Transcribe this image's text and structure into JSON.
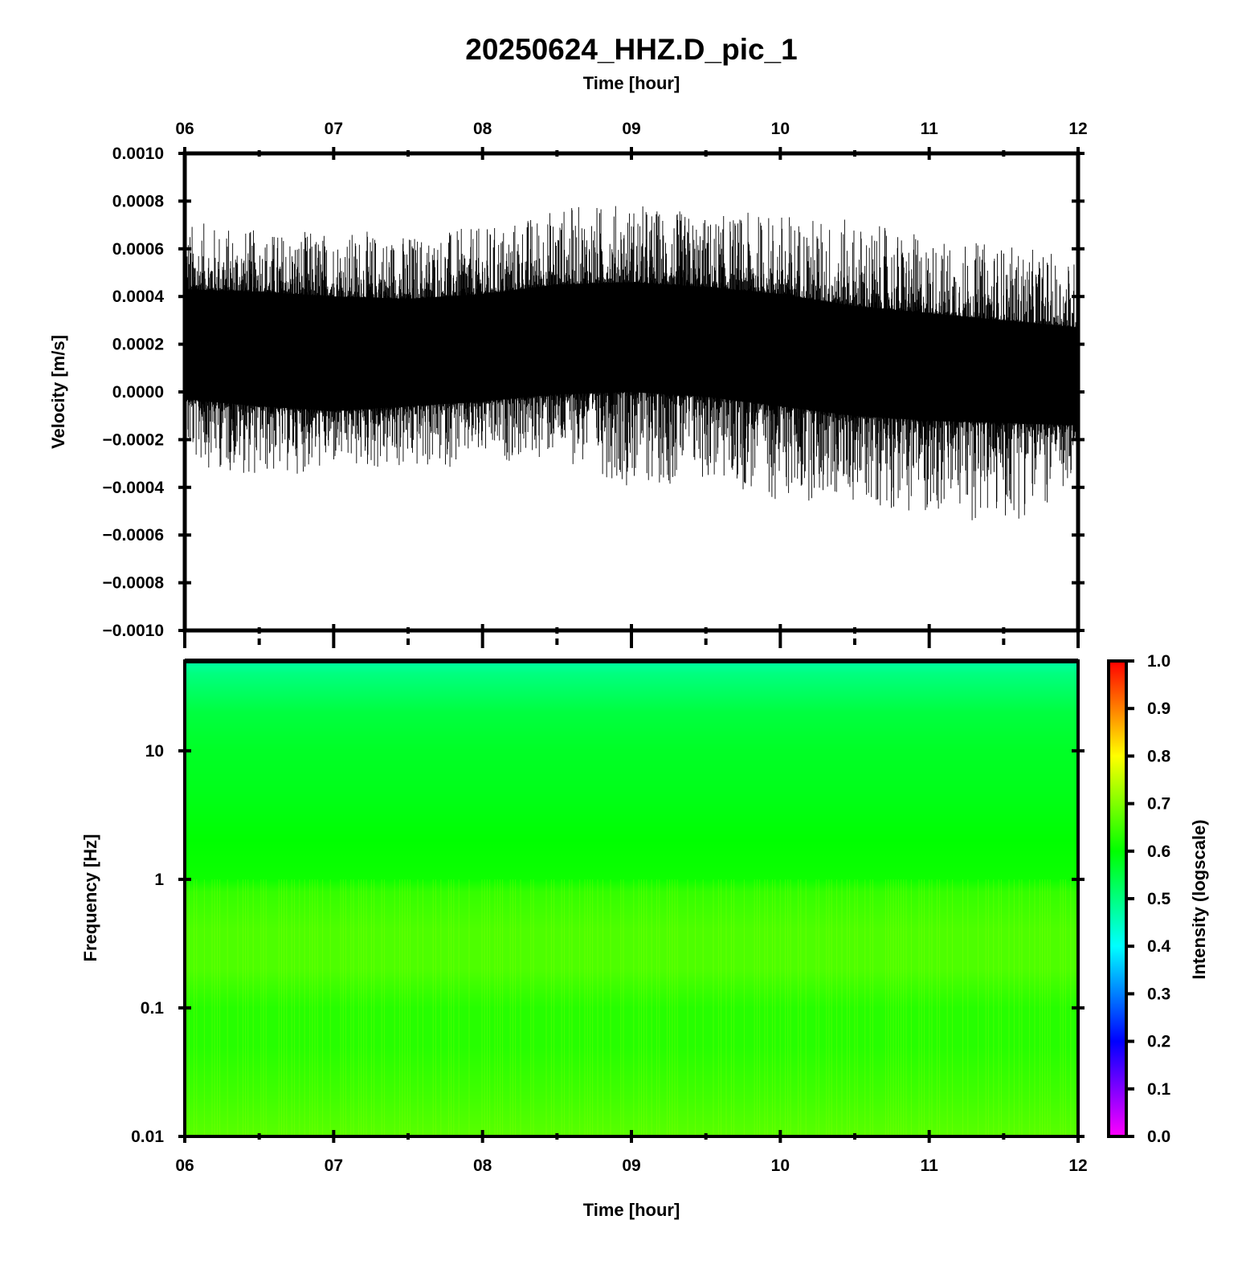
{
  "chart_data": [
    {
      "type": "line",
      "name": "velocity-waveform",
      "title": "20250624_HHZ.D_pic_1",
      "xlabel_top": "Time [hour]",
      "ylabel": "Velocity [m/s]",
      "xlim": [
        6,
        12
      ],
      "ylim": [
        -0.001,
        0.001
      ],
      "x_tick_labels": [
        "06",
        "07",
        "08",
        "09",
        "10",
        "11",
        "12"
      ],
      "x_tick_values": [
        6,
        7,
        8,
        9,
        10,
        11,
        12
      ],
      "y_tick_labels": [
        "0.0010",
        "0.0008",
        "0.0006",
        "0.0004",
        "0.0002",
        "0.0000",
        "−0.0002",
        "−0.0004",
        "−0.0006",
        "−0.0008",
        "−0.0010"
      ],
      "y_tick_values": [
        0.001,
        0.0008,
        0.0006,
        0.0004,
        0.0002,
        0.0,
        -0.0002,
        -0.0004,
        -0.0006,
        -0.0008,
        -0.001
      ],
      "grid": false,
      "series_color": "#000000",
      "envelope": {
        "x": [
          6.0,
          6.5,
          7.0,
          7.5,
          8.0,
          8.5,
          9.0,
          9.5,
          10.0,
          10.5,
          11.0,
          11.5,
          12.0
        ],
        "dense_upper": [
          0.00043,
          0.00042,
          0.0004,
          0.00039,
          0.00041,
          0.00045,
          0.00046,
          0.00044,
          0.00041,
          0.00036,
          0.00033,
          0.0003,
          0.00027
        ],
        "dense_lower": [
          -3e-05,
          -6e-05,
          -8e-05,
          -6e-05,
          -4e-05,
          -1e-05,
          0.0,
          -2e-05,
          -6e-05,
          -0.0001,
          -0.00012,
          -0.00013,
          -0.00014
        ],
        "peak_upper": [
          0.00072,
          0.00068,
          0.00068,
          0.00067,
          0.00069,
          0.00078,
          0.0008,
          0.00074,
          0.00076,
          0.00072,
          0.00065,
          0.00062,
          0.00056
        ],
        "peak_lower": [
          -0.0003,
          -0.00036,
          -0.00033,
          -0.00034,
          -0.0003,
          -0.00028,
          -0.0004,
          -0.00038,
          -0.00046,
          -0.00046,
          -0.00052,
          -0.00056,
          -0.00042
        ]
      }
    },
    {
      "type": "heatmap",
      "name": "spectrogram",
      "xlabel": "Time [hour]",
      "ylabel": "Frequency [Hz]",
      "xlim": [
        6,
        12
      ],
      "ylim": [
        0.01,
        50
      ],
      "yscale": "log",
      "x_tick_labels": [
        "06",
        "07",
        "08",
        "09",
        "10",
        "11",
        "12"
      ],
      "x_tick_values": [
        6,
        7,
        8,
        9,
        10,
        11,
        12
      ],
      "y_tick_labels": [
        "10",
        "1",
        "0.1",
        "0.01"
      ],
      "y_tick_values": [
        10,
        1,
        0.1,
        0.01
      ],
      "colorbar": {
        "label": "Intensity (logscale)",
        "range": [
          0.0,
          1.0
        ],
        "tick_labels": [
          "1.0",
          "0.9",
          "0.8",
          "0.7",
          "0.6",
          "0.5",
          "0.4",
          "0.3",
          "0.2",
          "0.1",
          "0.0"
        ],
        "tick_values": [
          1.0,
          0.9,
          0.8,
          0.7,
          0.6,
          0.5,
          0.4,
          0.3,
          0.2,
          0.1,
          0.0
        ],
        "colors": [
          "#ff00ff",
          "#0000ff",
          "#00ffff",
          "#00ff00",
          "#ffff00",
          "#ff0000"
        ]
      },
      "intensity_profile": {
        "frequency": [
          50,
          40,
          20,
          10,
          5,
          2,
          1,
          0.8,
          0.4,
          0.2,
          0.1,
          0.05,
          0.02,
          0.01
        ],
        "intensity": [
          0.47,
          0.5,
          0.55,
          0.57,
          0.58,
          0.6,
          0.61,
          0.64,
          0.66,
          0.66,
          0.63,
          0.63,
          0.65,
          0.67
        ]
      }
    }
  ]
}
